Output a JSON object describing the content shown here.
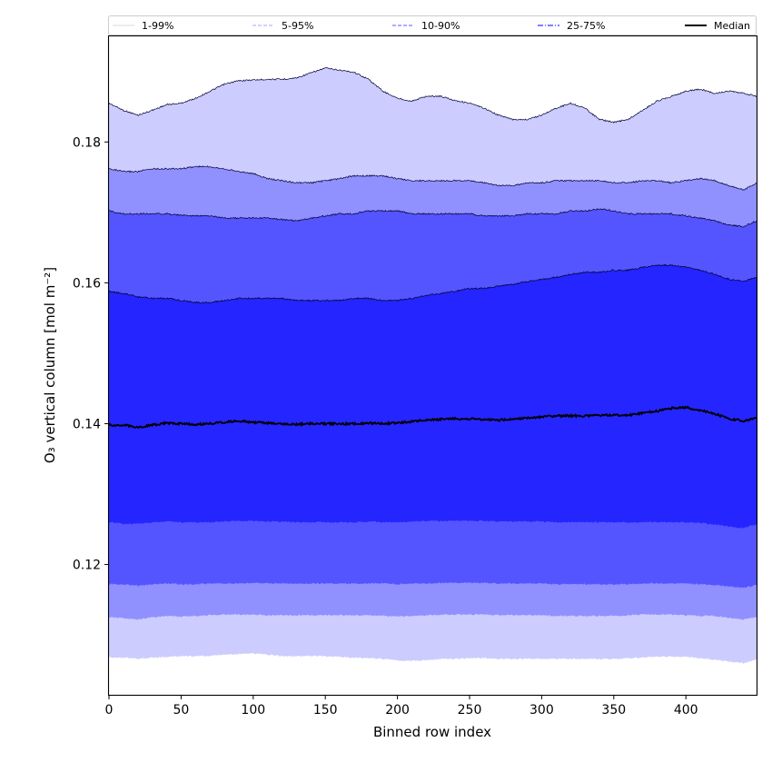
{
  "chart_data": {
    "type": "area",
    "xlabel": "Binned row index",
    "ylabel": "O₃ vertical column [mol m⁻²]",
    "xlim": [
      0,
      449
    ],
    "ylim": [
      0.1015,
      0.195
    ],
    "xticks": [
      0,
      50,
      100,
      150,
      200,
      250,
      300,
      350,
      400
    ],
    "yticks": [
      0.12,
      0.14,
      0.16,
      0.18
    ],
    "ytick_labels": [
      "0.12",
      "0.14",
      "0.16",
      "0.18"
    ],
    "x": [
      0,
      10,
      20,
      30,
      40,
      50,
      60,
      70,
      80,
      90,
      100,
      110,
      120,
      130,
      140,
      150,
      160,
      170,
      180,
      190,
      200,
      210,
      220,
      230,
      240,
      250,
      260,
      270,
      280,
      290,
      300,
      310,
      320,
      330,
      340,
      350,
      360,
      370,
      380,
      390,
      400,
      410,
      420,
      430,
      440,
      449
    ],
    "bands": [
      {
        "name": "1-99%",
        "color": "#ccccff",
        "lower": [
          0.1068,
          0.1068,
          0.1066,
          0.1068,
          0.1069,
          0.107,
          0.107,
          0.107,
          0.1072,
          0.1073,
          0.1074,
          0.1072,
          0.107,
          0.107,
          0.107,
          0.107,
          0.1069,
          0.1068,
          0.1067,
          0.1066,
          0.1064,
          0.1063,
          0.1064,
          0.1066,
          0.1066,
          0.1067,
          0.1067,
          0.1066,
          0.1066,
          0.1066,
          0.1066,
          0.1066,
          0.1066,
          0.1066,
          0.1066,
          0.1066,
          0.1067,
          0.1068,
          0.1069,
          0.1069,
          0.1069,
          0.1067,
          0.1065,
          0.1062,
          0.106,
          0.1065
        ],
        "upper": [
          0.1855,
          0.1845,
          0.1838,
          0.1845,
          0.1853,
          0.1855,
          0.1862,
          0.1872,
          0.1882,
          0.1887,
          0.1888,
          0.1889,
          0.1889,
          0.1891,
          0.1898,
          0.1905,
          0.1902,
          0.1899,
          0.1889,
          0.1872,
          0.1862,
          0.1858,
          0.1865,
          0.1865,
          0.1859,
          0.1855,
          0.1848,
          0.1838,
          0.1832,
          0.1832,
          0.1838,
          0.1848,
          0.1855,
          0.1848,
          0.1832,
          0.1828,
          0.1832,
          0.1845,
          0.1858,
          0.1865,
          0.1872,
          0.1875,
          0.1869,
          0.1872,
          0.1869,
          0.1865
        ]
      },
      {
        "name": "5-95%",
        "color": "#9090ff",
        "lower": [
          0.1125,
          0.1124,
          0.1122,
          0.1125,
          0.1127,
          0.1126,
          0.1127,
          0.1128,
          0.1129,
          0.1129,
          0.1129,
          0.1128,
          0.1128,
          0.1128,
          0.1128,
          0.1128,
          0.1128,
          0.1128,
          0.1128,
          0.1127,
          0.1126,
          0.1127,
          0.1128,
          0.1129,
          0.1129,
          0.1129,
          0.1129,
          0.1128,
          0.1128,
          0.1128,
          0.1128,
          0.1127,
          0.1127,
          0.1127,
          0.1127,
          0.1127,
          0.1128,
          0.1129,
          0.1129,
          0.1129,
          0.1128,
          0.1127,
          0.1127,
          0.1124,
          0.1122,
          0.1126
        ],
        "upper": [
          0.1762,
          0.1758,
          0.1758,
          0.1762,
          0.1762,
          0.1762,
          0.1765,
          0.1765,
          0.1762,
          0.1758,
          0.1755,
          0.1748,
          0.1745,
          0.1742,
          0.1742,
          0.1745,
          0.1748,
          0.1752,
          0.1752,
          0.1752,
          0.1748,
          0.1745,
          0.1745,
          0.1745,
          0.1745,
          0.1745,
          0.1742,
          0.1738,
          0.1738,
          0.1742,
          0.1742,
          0.1745,
          0.1745,
          0.1745,
          0.1745,
          0.1742,
          0.1742,
          0.1745,
          0.1745,
          0.1742,
          0.1745,
          0.1748,
          0.1745,
          0.1738,
          0.1732,
          0.1742
        ]
      },
      {
        "name": "10-90%",
        "color": "#5555ff",
        "lower": [
          0.1172,
          0.1172,
          0.117,
          0.1172,
          0.1173,
          0.1172,
          0.1172,
          0.1173,
          0.1173,
          0.1173,
          0.1174,
          0.1173,
          0.1173,
          0.1173,
          0.1173,
          0.1173,
          0.1173,
          0.1173,
          0.1173,
          0.1173,
          0.1172,
          0.1173,
          0.1173,
          0.1174,
          0.1174,
          0.1174,
          0.1174,
          0.1173,
          0.1173,
          0.1173,
          0.1173,
          0.1172,
          0.1172,
          0.1172,
          0.1172,
          0.1172,
          0.1172,
          0.1173,
          0.1173,
          0.1173,
          0.1173,
          0.1172,
          0.1171,
          0.1169,
          0.1167,
          0.1171
        ],
        "upper": [
          0.1702,
          0.1698,
          0.1698,
          0.1698,
          0.1698,
          0.1696,
          0.1695,
          0.1695,
          0.1692,
          0.1692,
          0.1692,
          0.1692,
          0.169,
          0.1688,
          0.1692,
          0.1695,
          0.1698,
          0.1698,
          0.1702,
          0.1702,
          0.1702,
          0.1698,
          0.1698,
          0.1698,
          0.1698,
          0.1698,
          0.1695,
          0.1695,
          0.1695,
          0.1698,
          0.1698,
          0.1698,
          0.1702,
          0.1702,
          0.1705,
          0.1702,
          0.1698,
          0.1698,
          0.1698,
          0.1698,
          0.1695,
          0.1692,
          0.1688,
          0.1682,
          0.168,
          0.1688
        ]
      },
      {
        "name": "25-75%",
        "color": "#2525ff",
        "lower": [
          0.126,
          0.1258,
          0.1258,
          0.126,
          0.1261,
          0.126,
          0.126,
          0.126,
          0.1261,
          0.1262,
          0.1262,
          0.1261,
          0.1261,
          0.126,
          0.126,
          0.126,
          0.126,
          0.126,
          0.1261,
          0.126,
          0.126,
          0.1261,
          0.1262,
          0.1262,
          0.1262,
          0.1262,
          0.1262,
          0.1261,
          0.1261,
          0.1261,
          0.1261,
          0.126,
          0.126,
          0.126,
          0.126,
          0.126,
          0.126,
          0.126,
          0.126,
          0.126,
          0.126,
          0.1259,
          0.1257,
          0.1254,
          0.1252,
          0.1257
        ],
        "upper": [
          0.1588,
          0.1585,
          0.158,
          0.1578,
          0.1578,
          0.1575,
          0.1572,
          0.1572,
          0.1575,
          0.1578,
          0.1578,
          0.1578,
          0.1578,
          0.1575,
          0.1575,
          0.1575,
          0.1575,
          0.1578,
          0.1578,
          0.1575,
          0.1575,
          0.1578,
          0.1582,
          0.1585,
          0.1588,
          0.1592,
          0.1592,
          0.1595,
          0.1598,
          0.1602,
          0.1605,
          0.1608,
          0.1612,
          0.1615,
          0.1615,
          0.1618,
          0.1618,
          0.1622,
          0.1625,
          0.1625,
          0.1622,
          0.1618,
          0.1612,
          0.1605,
          0.1602,
          0.1608
        ]
      }
    ],
    "median": {
      "name": "Median",
      "color": "#000000",
      "values": [
        0.1398,
        0.1398,
        0.1395,
        0.1398,
        0.1401,
        0.14,
        0.1399,
        0.14,
        0.1402,
        0.1404,
        0.1402,
        0.1401,
        0.14,
        0.1399,
        0.14,
        0.14,
        0.14,
        0.14,
        0.1401,
        0.14,
        0.1401,
        0.1403,
        0.1405,
        0.1406,
        0.1407,
        0.1407,
        0.1406,
        0.1405,
        0.1406,
        0.1408,
        0.141,
        0.1411,
        0.1411,
        0.1411,
        0.1412,
        0.1412,
        0.1412,
        0.1415,
        0.1418,
        0.1422,
        0.1423,
        0.1419,
        0.1414,
        0.1407,
        0.1404,
        0.1408
      ]
    },
    "legend": [
      {
        "label": "1-99%",
        "color": "#e0e0e0",
        "dash": "solid"
      },
      {
        "label": "5-95%",
        "color": "#b8b8ff",
        "dash": "dashed"
      },
      {
        "label": "10-90%",
        "color": "#7a7aff",
        "dash": "dashed"
      },
      {
        "label": "25-75%",
        "color": "#3333ff",
        "dash": "dashdot"
      },
      {
        "label": "Median",
        "color": "#000000",
        "dash": "solid"
      }
    ],
    "legend_position": "top"
  }
}
